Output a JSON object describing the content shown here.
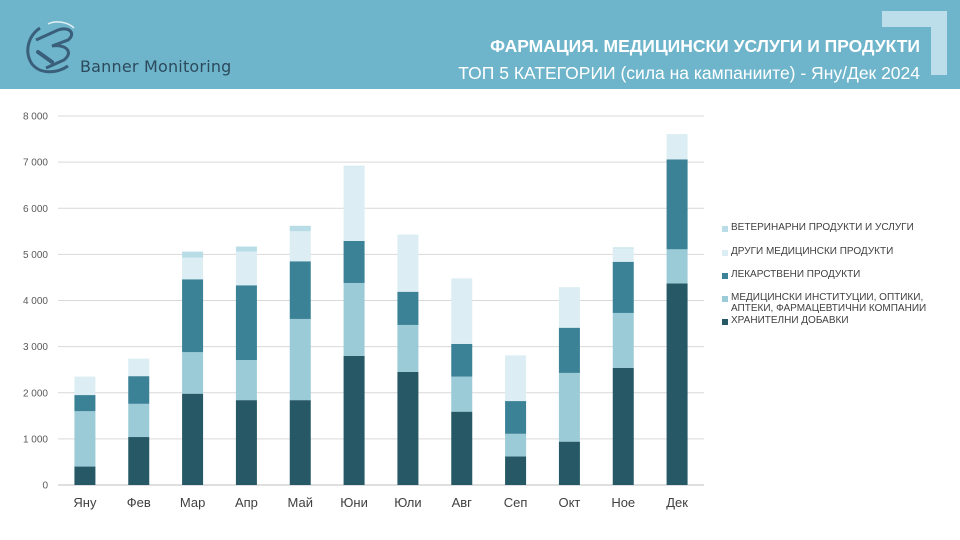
{
  "header": {
    "brand": "Banner Monitoring",
    "title": "ФАРМАЦИЯ. МЕДИЦИНСКИ УСЛУГИ И ПРОДУКТИ",
    "subtitle": "ТОП 5 КАТЕГОРИИ (сила на кампаниите) - Яну/Дек 2024"
  },
  "colors": {
    "header_bg": "#6eb5cc",
    "logo": "#3a5f7a"
  },
  "chart_data": {
    "type": "bar",
    "stacked": true,
    "categories": [
      "Яну",
      "Фев",
      "Мар",
      "Апр",
      "Май",
      "Юни",
      "Юли",
      "Авг",
      "Сеп",
      "Окт",
      "Ное",
      "Дек"
    ],
    "ylim": [
      0,
      8000
    ],
    "yticks": [
      "0",
      "1 000",
      "2 000",
      "3 000",
      "4 000",
      "5 000",
      "6 000",
      "7 000",
      "8 000"
    ],
    "grid": true,
    "legend_position": "right",
    "series": [
      {
        "name": "ХРАНИТЕЛНИ ДОБАВКИ",
        "color": "#265866",
        "values": [
          400,
          1040,
          1980,
          1840,
          1840,
          2800,
          2450,
          1590,
          620,
          940,
          2540,
          4370
        ]
      },
      {
        "name": "МЕДИЦИНСКИ ИНСТИТУЦИИ, ОПТИКИ, АПТЕКИ, ФАРМАЦЕВТИЧНИ КОМПАНИИ",
        "color": "#9ccbd8",
        "values": [
          1200,
          720,
          900,
          870,
          1760,
          1580,
          1020,
          760,
          490,
          1490,
          1190,
          740
        ]
      },
      {
        "name": "ЛЕКАРСТВЕНИ ПРОДУКТИ",
        "color": "#3b8297",
        "values": [
          350,
          600,
          1580,
          1620,
          1250,
          910,
          720,
          710,
          710,
          980,
          1110,
          1950
        ]
      },
      {
        "name": "ДРУГИ МЕДИЦИНСКИ ПРОДУКТИ",
        "color": "#dceef3",
        "values": [
          400,
          380,
          470,
          730,
          650,
          1620,
          1240,
          1420,
          990,
          880,
          290,
          530
        ]
      },
      {
        "name": "ВЕТЕРИНАРНИ ПРОДУКТИ И УСЛУГИ",
        "color": "#b9dde7",
        "values": [
          0,
          0,
          130,
          110,
          120,
          10,
          0,
          0,
          0,
          0,
          20,
          10
        ]
      }
    ]
  }
}
